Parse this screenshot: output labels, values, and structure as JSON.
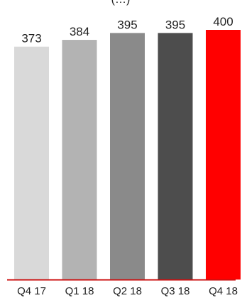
{
  "chart_data": {
    "type": "bar",
    "title": "(…)",
    "categories": [
      "Q4 17",
      "Q1 18",
      "Q2 18",
      "Q3 18",
      "Q4 18"
    ],
    "values": [
      373,
      384,
      395,
      395,
      400
    ],
    "data_labels": [
      "373",
      "384",
      "395",
      "395",
      "400"
    ],
    "xlabel": "",
    "ylabel": "",
    "ylim": [
      0,
      400
    ],
    "grid": false,
    "legend": "none",
    "bar_colors": [
      "#d9d9d9",
      "#b3b3b3",
      "#8a8a8a",
      "#4d4d4d",
      "#ff0000"
    ],
    "baseline_color": "#cc1111"
  }
}
